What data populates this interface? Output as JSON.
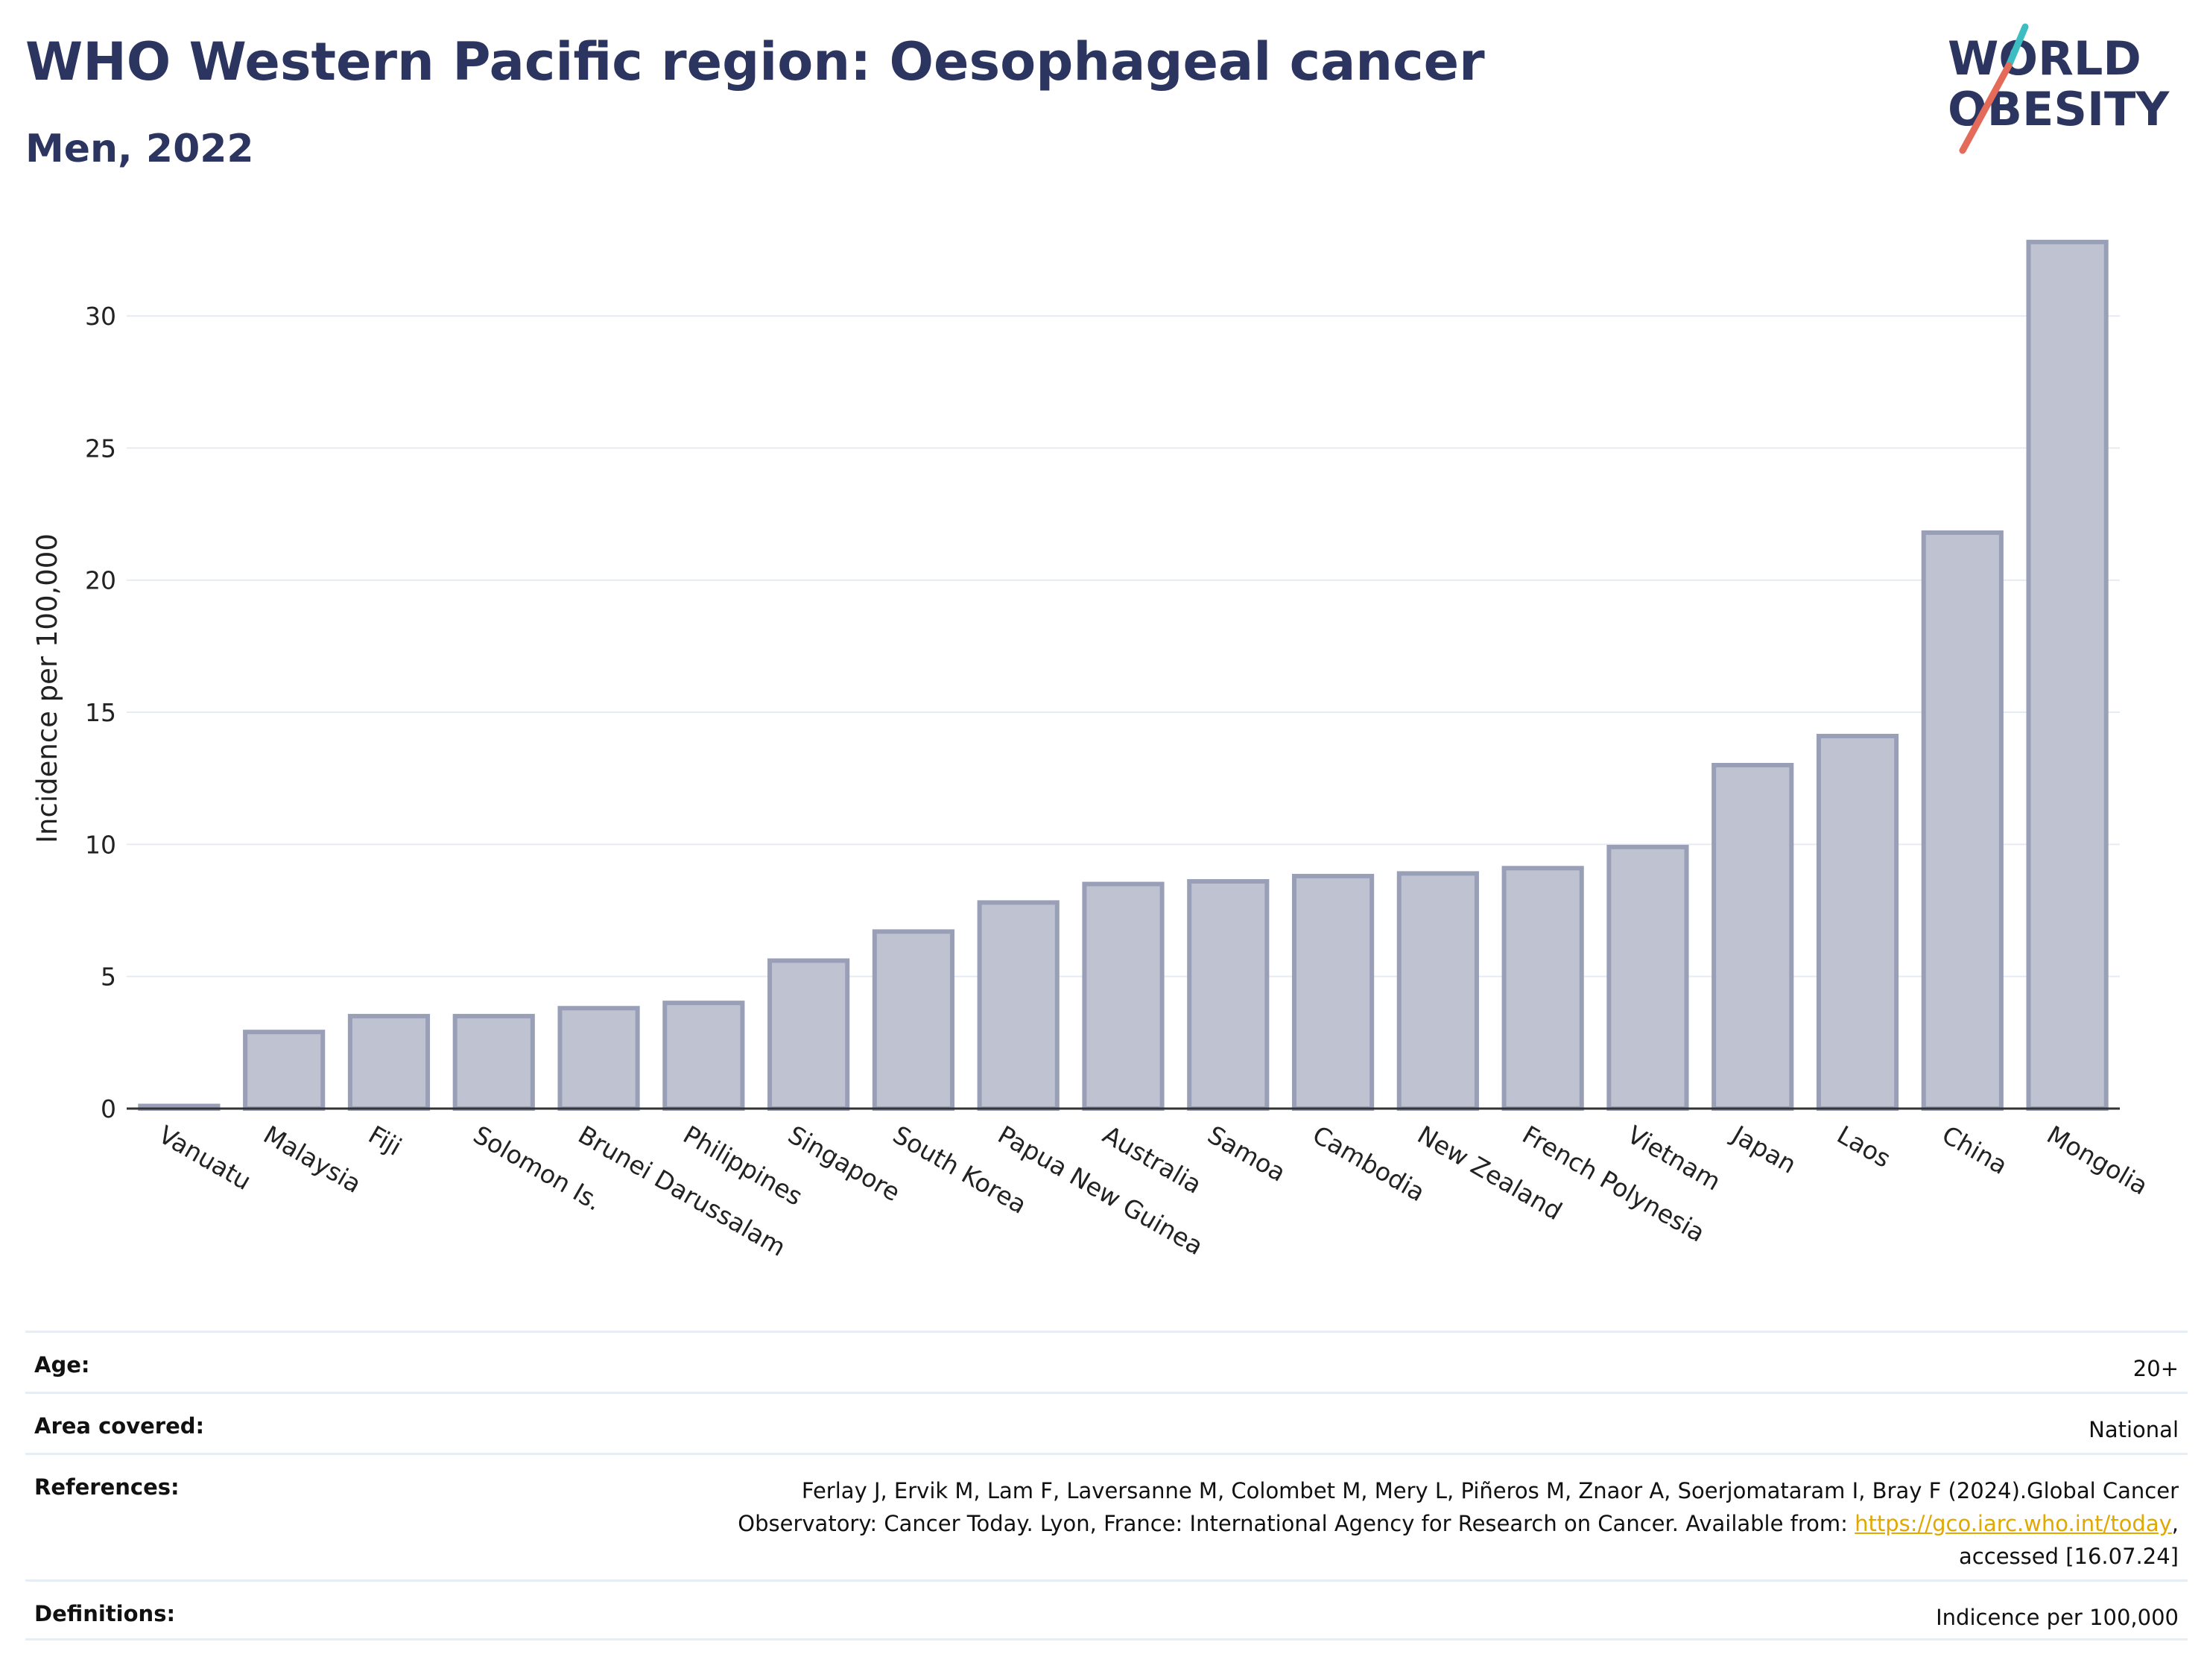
{
  "header": {
    "title": "WHO Western Pacific region: Oesophageal cancer",
    "subtitle": "Men, 2022"
  },
  "logo": {
    "line1": "WORLD",
    "line2": "OBESITY",
    "slash_colors": [
      "#3bbdc2",
      "#e46b5a"
    ]
  },
  "chart_data": {
    "type": "bar",
    "title": "WHO Western Pacific region: Oesophageal cancer",
    "subtitle": "Men, 2022",
    "xlabel": "",
    "ylabel": "Incidence per 100,000",
    "ylim": [
      0,
      33.5
    ],
    "yticks": [
      0,
      5,
      10,
      15,
      20,
      25,
      30
    ],
    "grid": true,
    "categories": [
      "Vanuatu",
      "Malaysia",
      "Fiji",
      "Solomon Is.",
      "Brunei Darussalam",
      "Philippines",
      "Singapore",
      "South Korea",
      "Papua New Guinea",
      "Australia",
      "Samoa",
      "Cambodia",
      "New Zealand",
      "French Polynesia",
      "Vietnam",
      "Japan",
      "Laos",
      "China",
      "Mongolia"
    ],
    "values": [
      0.1,
      2.9,
      3.5,
      3.5,
      3.8,
      4.0,
      5.6,
      6.7,
      7.8,
      8.5,
      8.6,
      8.8,
      8.9,
      9.1,
      9.9,
      13.0,
      14.1,
      21.8,
      32.8
    ],
    "bar_fill": "#bfc2d0",
    "bar_stroke": "#9a9fb8"
  },
  "metadata": {
    "rows": [
      {
        "label": "Age:",
        "value": "20+"
      },
      {
        "label": "Area covered:",
        "value": "National"
      },
      {
        "label": "References:",
        "value_pre": "Ferlay J, Ervik M, Lam F, Laversanne M, Colombet M, Mery L, Piñeros M, Znaor A, Soerjomataram I, Bray F (2024).Global Cancer Observatory: Cancer Today. Lyon, France: International Agency for Research on Cancer. Available from: ",
        "link": "https://gco.iarc.who.int/today",
        "value_post": ", accessed [16.07.24]"
      },
      {
        "label": "Definitions:",
        "value": "Indicence per 100,000"
      }
    ]
  }
}
